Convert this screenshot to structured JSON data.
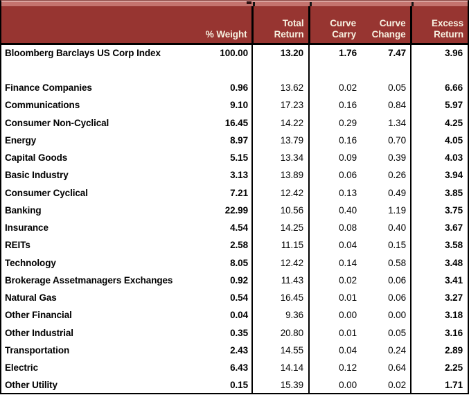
{
  "chart_data": {
    "type": "table",
    "columns": [
      "",
      "% Weight",
      "Total Return",
      "Curve Carry",
      "Curve Change",
      "Excess Return"
    ],
    "index_row": {
      "name": "Bloomberg Barclays US Corp Index",
      "weight": "100.00",
      "total": "13.20",
      "carry": "1.76",
      "change": "7.47",
      "excess": "3.96"
    },
    "rows": [
      {
        "name": "Finance Companies",
        "weight": "0.96",
        "total": "13.62",
        "carry": "0.02",
        "change": "0.05",
        "excess": "6.66"
      },
      {
        "name": "Communications",
        "weight": "9.10",
        "total": "17.23",
        "carry": "0.16",
        "change": "0.84",
        "excess": "5.97"
      },
      {
        "name": "Consumer Non-Cyclical",
        "weight": "16.45",
        "total": "14.22",
        "carry": "0.29",
        "change": "1.34",
        "excess": "4.25"
      },
      {
        "name": "Energy",
        "weight": "8.97",
        "total": "13.79",
        "carry": "0.16",
        "change": "0.70",
        "excess": "4.05"
      },
      {
        "name": "Capital Goods",
        "weight": "5.15",
        "total": "13.34",
        "carry": "0.09",
        "change": "0.39",
        "excess": "4.03"
      },
      {
        "name": "Basic Industry",
        "weight": "3.13",
        "total": "13.89",
        "carry": "0.06",
        "change": "0.26",
        "excess": "3.94"
      },
      {
        "name": "Consumer Cyclical",
        "weight": "7.21",
        "total": "12.42",
        "carry": "0.13",
        "change": "0.49",
        "excess": "3.85"
      },
      {
        "name": "Banking",
        "weight": "22.99",
        "total": "10.56",
        "carry": "0.40",
        "change": "1.19",
        "excess": "3.75"
      },
      {
        "name": "Insurance",
        "weight": "4.54",
        "total": "14.25",
        "carry": "0.08",
        "change": "0.40",
        "excess": "3.67"
      },
      {
        "name": "REITs",
        "weight": "2.58",
        "total": "11.15",
        "carry": "0.04",
        "change": "0.15",
        "excess": "3.58"
      },
      {
        "name": "Technology",
        "weight": "8.05",
        "total": "12.42",
        "carry": "0.14",
        "change": "0.58",
        "excess": "3.48"
      },
      {
        "name": "Brokerage Assetmanagers Exchanges",
        "weight": "0.92",
        "total": "11.43",
        "carry": "0.02",
        "change": "0.06",
        "excess": "3.41"
      },
      {
        "name": "Natural Gas",
        "weight": "0.54",
        "total": "16.45",
        "carry": "0.01",
        "change": "0.06",
        "excess": "3.27"
      },
      {
        "name": "Other Financial",
        "weight": "0.04",
        "total": "9.36",
        "carry": "0.00",
        "change": "0.00",
        "excess": "3.18"
      },
      {
        "name": "Other Industrial",
        "weight": "0.35",
        "total": "20.80",
        "carry": "0.01",
        "change": "0.05",
        "excess": "3.16"
      },
      {
        "name": "Transportation",
        "weight": "2.43",
        "total": "14.55",
        "carry": "0.04",
        "change": "0.24",
        "excess": "2.89"
      },
      {
        "name": "Electric",
        "weight": "6.43",
        "total": "14.14",
        "carry": "0.12",
        "change": "0.64",
        "excess": "2.25"
      },
      {
        "name": "Other Utility",
        "weight": "0.15",
        "total": "15.39",
        "carry": "0.00",
        "change": "0.02",
        "excess": "1.71"
      }
    ]
  },
  "header": {
    "weight": "% Weight",
    "total_l1": "Total",
    "total_l2": "Return",
    "carry_l1": "Curve",
    "carry_l2": "Carry",
    "change_l1": "Curve",
    "change_l2": "Change",
    "excess_l1": "Excess",
    "excess_l2": "Return"
  },
  "colors": {
    "header_bg": "#973531",
    "title_strip_bg": "#c4736e",
    "title_strip_highlight": "#d9a29e",
    "header_text": "#f7f1e1",
    "border": "#000000",
    "row_text": "#000000"
  }
}
